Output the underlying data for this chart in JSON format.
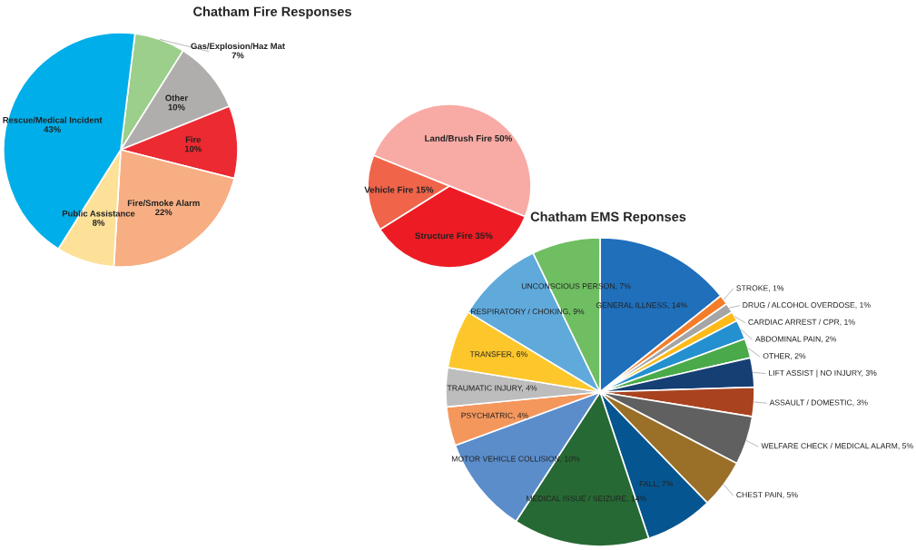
{
  "chart_data": [
    {
      "type": "pie",
      "title": "Chatham Fire Responses",
      "categories": [
        "Gas/Explosion/Haz Mat",
        "Other",
        "Fire",
        "Fire/Smoke Alarm",
        "Public Assistance",
        "Rescue/Medical Incident"
      ],
      "values": [
        7,
        10,
        10,
        22,
        8,
        43
      ],
      "colors": [
        "#9bcf8b",
        "#b0aeac",
        "#ec2a31",
        "#f7ae83",
        "#fde199",
        "#00aee9"
      ],
      "value_labels": [
        "7%",
        "10%",
        "10%",
        "22%",
        "8%",
        "43%"
      ]
    },
    {
      "type": "pie",
      "categories": [
        "Land/Brush Fire",
        "Structure Fire",
        "Vehicle Fire"
      ],
      "values": [
        50,
        35,
        15
      ],
      "colors": [
        "#f8aba5",
        "#ed1c24",
        "#f0644a"
      ],
      "value_labels": [
        "50%",
        "35%",
        "15%"
      ]
    },
    {
      "type": "pie",
      "title": "Chatham EMS Reponses",
      "categories": [
        "GENERAL ILLNESS",
        "STROKE",
        "DRUG / ALCOHOL OVERDOSE",
        "CARDIAC ARREST / CPR",
        "ABDOMINAL PAIN",
        "OTHER",
        "LIFT ASSIST | NO INJURY",
        "ASSAULT / DOMESTIC",
        "WELFARE CHECK / MEDICAL ALARM",
        "CHEST PAIN",
        "FALL",
        "MEDICAL ISSUE / SEIZURE",
        "MOTOR VEHICLE COLLISION",
        "PSYCHIATRIC",
        "TRAUMATIC INJURY",
        "TRANSFER",
        "RESPIRATORY / CHOKING",
        "UNCONSCIOUS PERSON"
      ],
      "values": [
        14,
        1,
        1,
        1,
        2,
        2,
        3,
        3,
        5,
        5,
        7,
        14,
        10,
        4,
        4,
        6,
        9,
        7
      ],
      "colors": [
        "#1f6fbb",
        "#f47d2a",
        "#a5a5a5",
        "#fdba18",
        "#2590d0",
        "#4aaa4a",
        "#163f73",
        "#a9431f",
        "#606060",
        "#9a6f27",
        "#055590",
        "#276934",
        "#5b8dcb",
        "#f4975d",
        "#bdbdbd",
        "#fdc72c",
        "#5fa9db",
        "#6fbe62"
      ],
      "value_labels": [
        "14%",
        "1%",
        "1%",
        "1%",
        "2%",
        "2%",
        "3%",
        "3%",
        "5%",
        "5%",
        "7%",
        "14%",
        "10%",
        "4%",
        "4%",
        "6%",
        "9%",
        "7%"
      ]
    }
  ]
}
